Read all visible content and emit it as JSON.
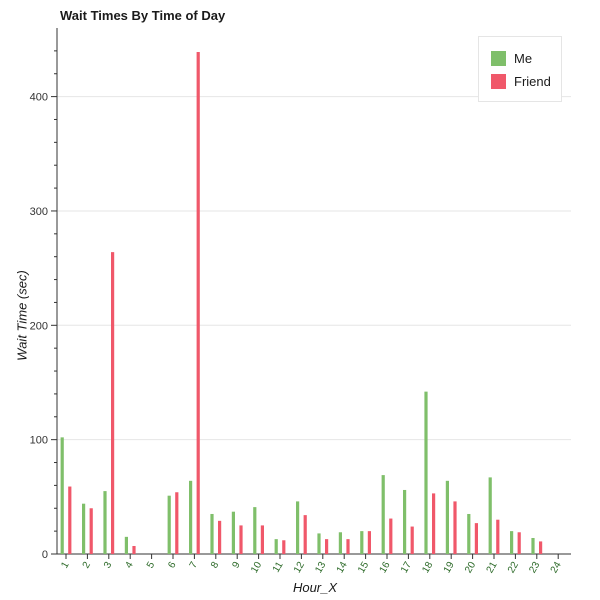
{
  "chart_data": {
    "type": "bar",
    "title": "Wait Times By Time of Day",
    "xlabel": "Hour_X",
    "ylabel": "Wait Time (sec)",
    "categories": [
      "1",
      "2",
      "3",
      "4",
      "5",
      "6",
      "7",
      "8",
      "9",
      "10",
      "11",
      "12",
      "13",
      "14",
      "15",
      "16",
      "17",
      "18",
      "19",
      "20",
      "21",
      "22",
      "23",
      "24"
    ],
    "series": [
      {
        "name": "Me",
        "color": "#7fbf6a",
        "values": [
          102,
          44,
          55,
          15,
          0,
          51,
          64,
          35,
          37,
          41,
          13,
          46,
          18,
          19,
          20,
          69,
          56,
          142,
          64,
          35,
          67,
          20,
          14,
          0
        ]
      },
      {
        "name": "Friend",
        "color": "#f0586a",
        "values": [
          59,
          40,
          264,
          7,
          0,
          54,
          439,
          29,
          25,
          25,
          12,
          34,
          13,
          13,
          20,
          31,
          24,
          53,
          46,
          27,
          30,
          19,
          11,
          0
        ]
      }
    ],
    "ylim": [
      0,
      460
    ],
    "yticks": [
      0,
      100,
      200,
      300,
      400
    ],
    "grid": true,
    "legend_position": "top-right"
  }
}
